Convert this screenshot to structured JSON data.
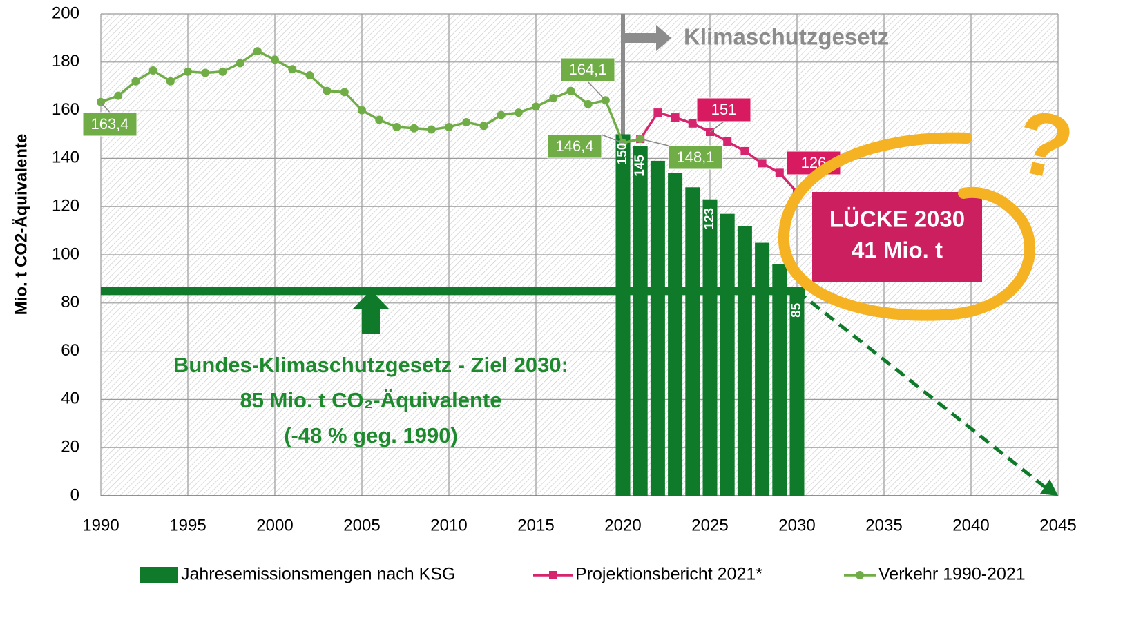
{
  "chart_data": {
    "type": "combo",
    "y_label": "Mio. t CO2-Äquivalente",
    "xlim": [
      1990,
      2045
    ],
    "xticks": [
      1990,
      1995,
      2000,
      2005,
      2010,
      2015,
      2020,
      2025,
      2030,
      2035,
      2040,
      2045
    ],
    "ylim": [
      0,
      200
    ],
    "yticks": [
      0,
      20,
      40,
      60,
      80,
      100,
      120,
      140,
      160,
      180,
      200
    ],
    "grid": true,
    "series": [
      {
        "name": "Jahresemissionsmengen nach KSG",
        "type": "bar",
        "color": "#0e7a2a",
        "x": [
          2020,
          2021,
          2022,
          2023,
          2024,
          2025,
          2026,
          2027,
          2028,
          2029,
          2030
        ],
        "values": [
          150,
          145,
          139,
          134,
          128,
          123,
          117,
          112,
          105,
          96,
          85
        ],
        "value_labels": [
          "150",
          "145",
          null,
          null,
          null,
          "123",
          null,
          null,
          null,
          null,
          "85"
        ]
      },
      {
        "name": "Projektionsbericht 2021*",
        "type": "line",
        "marker": "square",
        "color": "#d6246e",
        "x": [
          2021,
          2022,
          2023,
          2024,
          2025,
          2026,
          2027,
          2028,
          2029,
          2030
        ],
        "values": [
          148.1,
          159,
          157,
          154.5,
          151,
          147,
          143,
          138,
          134,
          126
        ],
        "value_labels": [
          null,
          null,
          null,
          null,
          "151",
          null,
          null,
          null,
          null,
          "126"
        ]
      },
      {
        "name": "Verkehr 1990-2021",
        "type": "line",
        "marker": "circle",
        "color": "#70ad47",
        "x": [
          1990,
          1991,
          1992,
          1993,
          1994,
          1995,
          1996,
          1997,
          1998,
          1999,
          2000,
          2001,
          2002,
          2003,
          2004,
          2005,
          2006,
          2007,
          2008,
          2009,
          2010,
          2011,
          2012,
          2013,
          2014,
          2015,
          2016,
          2017,
          2018,
          2019,
          2020,
          2021
        ],
        "values": [
          163.4,
          166,
          172,
          176.5,
          172,
          176,
          175.5,
          176,
          179.5,
          184.5,
          181,
          177,
          174.5,
          168,
          167.5,
          160,
          156,
          153,
          152.5,
          152,
          153,
          155,
          153.5,
          158,
          159,
          161.5,
          165,
          168,
          162.5,
          164.1,
          146.4,
          148.1
        ],
        "value_labels": [
          "163,4",
          null,
          null,
          null,
          null,
          null,
          null,
          null,
          null,
          null,
          null,
          null,
          null,
          null,
          null,
          null,
          null,
          null,
          null,
          null,
          null,
          null,
          null,
          null,
          null,
          null,
          null,
          null,
          null,
          "164,1",
          "146,4",
          "148,1"
        ]
      }
    ],
    "law": {
      "label": "Klimaschutzgesetz",
      "year": 2020
    },
    "target": {
      "value": 85,
      "x": [
        1990,
        2030
      ],
      "lines": [
        "Bundes-Klimaschutzgesetz - Ziel 2030:",
        "85 Mio. t CO₂-Äquivalente",
        "(-48 % geg. 1990)"
      ]
    },
    "trend": {
      "x": [
        2030,
        2045
      ],
      "values": [
        85,
        0
      ]
    },
    "gap": {
      "lines": [
        "LÜCKE 2030",
        "41 Mio. t"
      ]
    },
    "question": "?"
  }
}
